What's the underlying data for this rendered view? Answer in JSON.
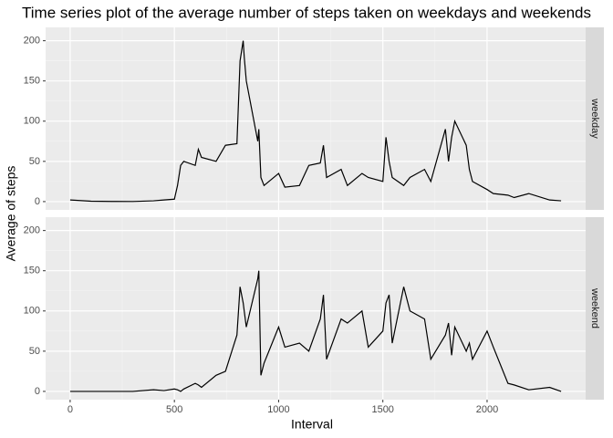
{
  "chart_data": {
    "type": "line",
    "title": "Time series plot of the average number of steps taken on weekdays and weekends",
    "x_label": "Interval",
    "y_label": "Average of steps",
    "x": [
      0,
      100,
      200,
      300,
      400,
      450,
      500,
      515,
      530,
      545,
      600,
      615,
      630,
      700,
      745,
      800,
      815,
      830,
      835,
      845,
      900,
      905,
      915,
      930,
      1000,
      1030,
      1100,
      1145,
      1200,
      1215,
      1230,
      1300,
      1330,
      1400,
      1430,
      1500,
      1515,
      1530,
      1545,
      1600,
      1630,
      1700,
      1730,
      1800,
      1815,
      1830,
      1845,
      1900,
      1915,
      1930,
      2000,
      2030,
      2100,
      2130,
      2200,
      2300,
      2355
    ],
    "series": [
      {
        "name": "weekday",
        "color": "#000000",
        "values": [
          2,
          0.5,
          0.2,
          0.1,
          1,
          2,
          3,
          20,
          45,
          50,
          45,
          65,
          55,
          50,
          70,
          72,
          175,
          200,
          180,
          150,
          75,
          90,
          30,
          20,
          35,
          18,
          20,
          45,
          48,
          70,
          30,
          40,
          20,
          35,
          30,
          25,
          80,
          50,
          30,
          20,
          30,
          40,
          25,
          90,
          50,
          80,
          100,
          70,
          40,
          25,
          15,
          10,
          8,
          5,
          10,
          2,
          1
        ]
      },
      {
        "name": "weekend",
        "color": "#000000",
        "values": [
          0,
          0,
          0,
          0,
          2,
          1,
          3,
          2,
          0,
          3,
          10,
          8,
          5,
          20,
          25,
          70,
          130,
          110,
          100,
          80,
          140,
          150,
          20,
          35,
          80,
          55,
          60,
          50,
          90,
          120,
          40,
          90,
          85,
          100,
          55,
          75,
          110,
          120,
          60,
          130,
          100,
          90,
          40,
          70,
          85,
          45,
          80,
          50,
          60,
          40,
          75,
          55,
          10,
          8,
          2,
          5,
          0
        ]
      }
    ],
    "xlim": [
      -117.75,
      2472.75
    ],
    "xticks": [
      0,
      500,
      1000,
      1500,
      2000
    ],
    "ylim": [
      -10.3,
      216.6
    ],
    "yticks": [
      0,
      50,
      100,
      150,
      200
    ],
    "grid": true
  }
}
